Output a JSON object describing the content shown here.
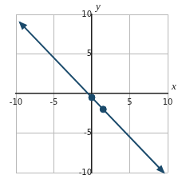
{
  "chart_data": {
    "type": "line",
    "x_label": "x",
    "y_label": "y",
    "xlim": [
      -10,
      10
    ],
    "ylim": [
      -10,
      10
    ],
    "xticks": [
      -10,
      -5,
      5,
      10
    ],
    "yticks": [
      -10,
      -5,
      5,
      10
    ],
    "grid": true,
    "series": [
      {
        "type": "line",
        "color": "#1a4a6b",
        "x": [
          -9.5,
          9.5
        ],
        "values": [
          9,
          -10
        ],
        "marker": "arrow",
        "line_style": "solid"
      },
      {
        "type": "scatter",
        "color": "#1a4a6b",
        "x": [
          0,
          1.5
        ],
        "values": [
          -0.5,
          -2
        ],
        "marker": "circle"
      }
    ]
  }
}
